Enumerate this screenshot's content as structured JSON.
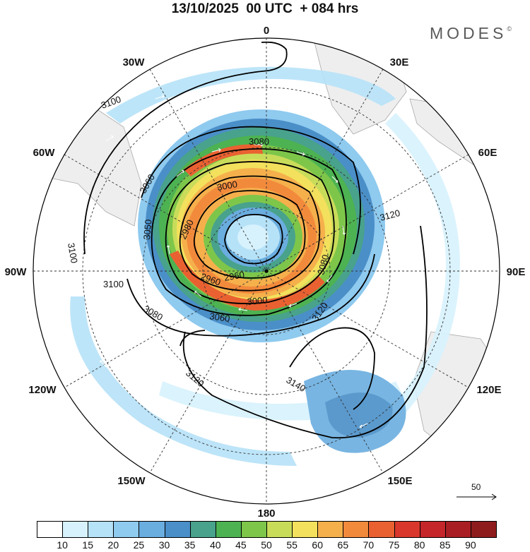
{
  "header": {
    "title": "13/10/2025  00 UTC  + 084 hrs",
    "brand": "MODES",
    "brand_mark": "©"
  },
  "map": {
    "projection": "south-polar-stereographic",
    "longitude_labels": [
      "0",
      "30E",
      "60E",
      "90E",
      "120E",
      "150E",
      "180",
      "150W",
      "120W",
      "90W",
      "60W",
      "30W"
    ],
    "contour_labels": [
      "3100",
      "3080",
      "3060",
      "3000",
      "2980",
      "2960",
      "3050",
      "3100",
      "3100",
      "3080",
      "3060",
      "3000",
      "3120",
      "3080",
      "3120",
      "3140",
      "3120",
      "2960"
    ],
    "vector_reference": {
      "value": "50",
      "icon": "arrow-right-icon"
    }
  },
  "colorbar": {
    "levels": [
      "10",
      "15",
      "20",
      "25",
      "30",
      "35",
      "40",
      "45",
      "50",
      "55",
      "60",
      "65",
      "70",
      "75",
      "80",
      "85",
      "90"
    ],
    "colors": [
      "#ffffff",
      "#d7f2fd",
      "#b6e2f8",
      "#8fcaef",
      "#6aaddf",
      "#4a8fc8",
      "#48a28c",
      "#4db251",
      "#7dc64a",
      "#c9dc5a",
      "#f3e05c",
      "#f5b04c",
      "#f28a3c",
      "#ea6131",
      "#d9372c",
      "#c4262a",
      "#a91e22",
      "#8f1c1d"
    ]
  }
}
